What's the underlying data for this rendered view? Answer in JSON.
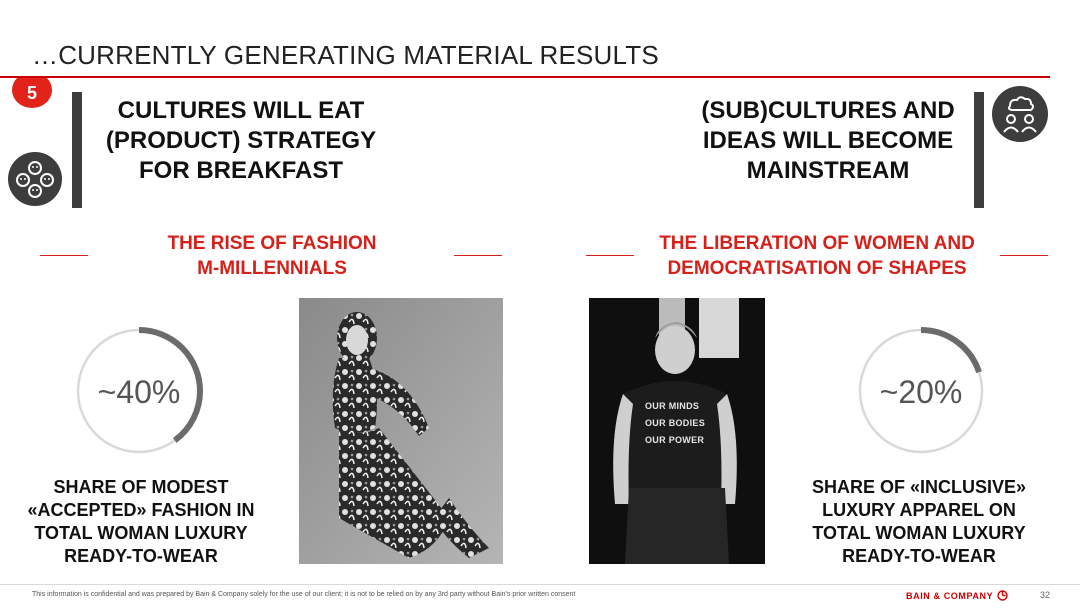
{
  "header": {
    "title": "…CURRENTLY GENERATING MATERIAL RESULTS",
    "section_number": "5"
  },
  "left": {
    "headline": [
      "CULTURES WILL EAT",
      "(PRODUCT) STRATEGY",
      "FOR BREAKFAST"
    ],
    "icon": "people-chat-icon",
    "subheading": [
      "THE RISE OF FASHION",
      "M-MILLENNIALS"
    ],
    "stat": {
      "value": "~40%",
      "fraction": 0.4
    },
    "caption": [
      "SHARE OF MODEST",
      "«ACCEPTED» FASHION IN",
      "TOTAL WOMAN LUXURY",
      "READY-TO-WEAR"
    ]
  },
  "right": {
    "headline": [
      "(SUB)CULTURES AND",
      "IDEAS WILL BECOME",
      "MAINSTREAM"
    ],
    "icon": "thought-cloud-people-icon",
    "subheading": [
      "THE LIBERATION OF WOMEN AND",
      "DEMOCRATISATION OF SHAPES"
    ],
    "stat": {
      "value": "~20%",
      "fraction": 0.2
    },
    "caption": [
      "SHARE OF «INCLUSIVE»",
      "LUXURY APPAREL ON",
      "TOTAL WOMAN LUXURY",
      "READY-TO-WEAR"
    ],
    "photo_shirt_text": [
      "OUR MINDS",
      "OUR BODIES",
      "OUR POWER"
    ]
  },
  "colors": {
    "accent_red": "#d6201a",
    "gauge_fill": "#6b6b6b",
    "gauge_track": "#d9d9d9",
    "icon_dark": "#3d3d3d"
  },
  "footer": {
    "disclaimer": "This information is confidential and was prepared by Bain & Company solely for the use of our client; it is not to be relied on by any 3rd party without Bain's prior written consent",
    "brand": "BAIN & COMPANY",
    "brand_icon": "bain-circle-icon",
    "page_number": "32"
  }
}
